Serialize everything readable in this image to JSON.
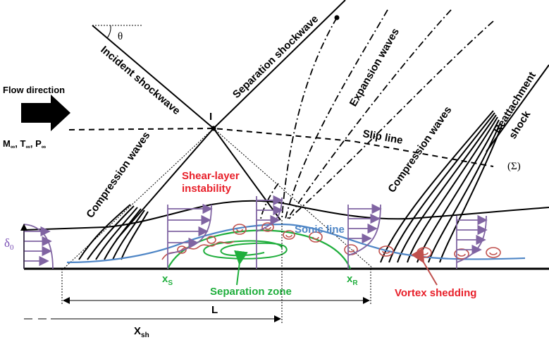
{
  "labels": {
    "theta": "θ",
    "incident_shockwave": "Incident shockwave",
    "separation_shockwave": "Separation shockwave",
    "expansion_waves": "Expansion waves",
    "reattachment": "Reattachment",
    "shock": "shock",
    "flow_direction": "Flow direction",
    "freestream_m": "M",
    "freestream_t": "T",
    "freestream_p": "P",
    "infinity_sub": "∞",
    "point_i": "I",
    "slip_line": "Slip line",
    "sigma": "(Σ)",
    "compression_waves_left": "Compression waves",
    "compression_waves_right": "Compression waves",
    "shear_layer_1": "Shear-layer",
    "shear_layer_2": "instability",
    "sonic_line": "Sonic line",
    "delta_0": "δ",
    "delta_sub": "0",
    "xs": "x",
    "xs_sub": "S",
    "xr": "x",
    "xr_sub": "R",
    "separation_zone": "Separation zone",
    "vortex_shedding": "Vortex shedding",
    "L": "L",
    "xsh": "X",
    "xsh_sub": "sh"
  },
  "colors": {
    "shear_layer": "#e8202a",
    "separation": "#1fae3c",
    "sonic_line": "#4f86c6",
    "profiles": "#8064a2",
    "vortex": "#c0504d"
  }
}
